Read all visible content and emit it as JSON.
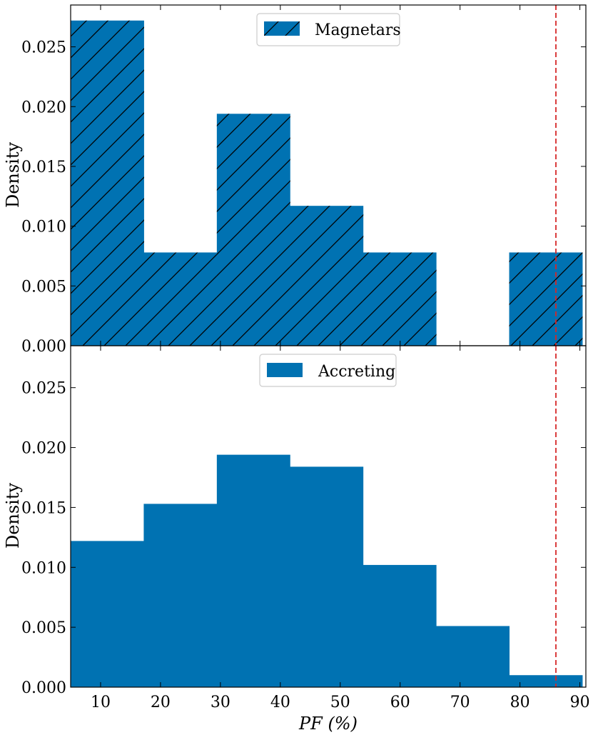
{
  "chart_data": [
    {
      "type": "bar",
      "panel": "top",
      "bin_edges": [
        5.0,
        17.2,
        29.4,
        41.6,
        53.8,
        66.0,
        78.2,
        90.4
      ],
      "values": [
        0.0272,
        0.0078,
        0.0194,
        0.0117,
        0.0078,
        0.0,
        0.0078
      ],
      "series": [
        {
          "name": "Magnetars",
          "color": "#0072b2",
          "hatch": "diagonal"
        }
      ],
      "xlim": [
        5,
        91
      ],
      "ylim": [
        0,
        0.0285
      ],
      "yticks": [
        0.0,
        0.005,
        0.01,
        0.015,
        0.02,
        0.025
      ],
      "ytick_labels": [
        "0.000",
        "0.005",
        "0.010",
        "0.015",
        "0.020",
        "0.025"
      ],
      "xlabel": "",
      "ylabel": "Density",
      "legend_position": "top-center",
      "vline": {
        "x": 86,
        "color": "#d62728",
        "style": "dashed"
      }
    },
    {
      "type": "bar",
      "panel": "bottom",
      "bin_edges": [
        5.0,
        17.2,
        29.4,
        41.6,
        53.8,
        66.0,
        78.2,
        90.4
      ],
      "values": [
        0.0122,
        0.0153,
        0.0194,
        0.0184,
        0.0102,
        0.0051,
        0.001
      ],
      "series": [
        {
          "name": "Accreting",
          "color": "#0072b2",
          "hatch": "none"
        }
      ],
      "xlim": [
        5,
        91
      ],
      "ylim": [
        0,
        0.0285
      ],
      "xticks": [
        10,
        20,
        30,
        40,
        50,
        60,
        70,
        80,
        90
      ],
      "xtick_labels": [
        "10",
        "20",
        "30",
        "40",
        "50",
        "60",
        "70",
        "80",
        "90"
      ],
      "yticks": [
        0.0,
        0.005,
        0.01,
        0.015,
        0.02,
        0.025
      ],
      "ytick_labels": [
        "0.000",
        "0.005",
        "0.010",
        "0.015",
        "0.020",
        "0.025"
      ],
      "xlabel": "PF (%)",
      "ylabel": "Density",
      "legend_position": "top-center",
      "vline": {
        "x": 86,
        "color": "#d62728",
        "style": "dashed"
      }
    }
  ]
}
